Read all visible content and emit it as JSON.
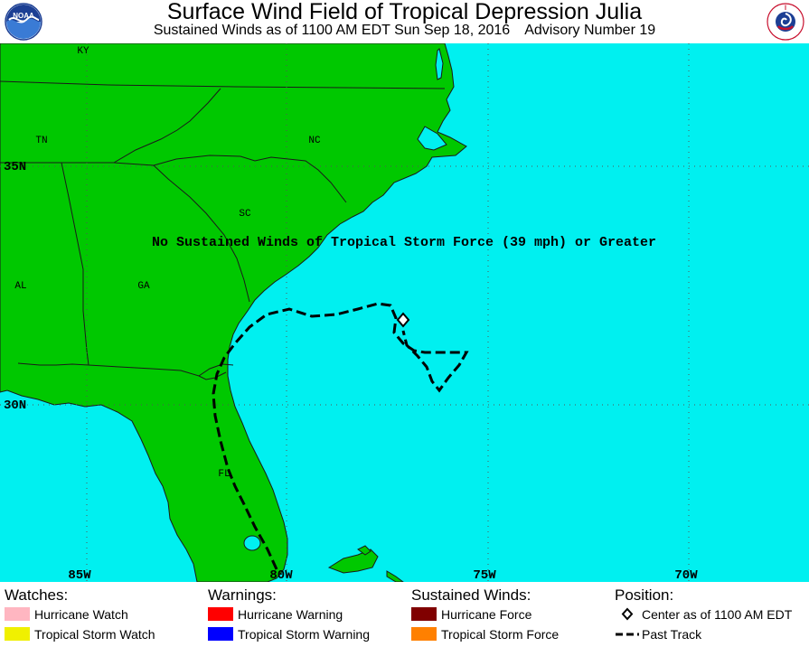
{
  "header": {
    "title": "Surface Wind Field of Tropical Depression Julia",
    "subtitle_left": "Sustained Winds as of 1100 AM EDT Sun Sep 18, 2016",
    "subtitle_right": "Advisory Number 19",
    "logo_left": "NOAA",
    "logo_right": "NATIONAL WEATHER SERVICE"
  },
  "map": {
    "state_labels": [
      "KY",
      "TN",
      "NC",
      "SC",
      "AL",
      "GA",
      "FL"
    ],
    "lat_labels": [
      "35N",
      "30N"
    ],
    "lon_labels": [
      "85W",
      "80W",
      "75W",
      "70W"
    ],
    "notice": "No Sustained Winds of Tropical Storm Force (39 mph) or Greater",
    "colors": {
      "land": "#00c800",
      "ocean": "#00f0f0",
      "border": "#1a1a1a",
      "grid": "#555555"
    }
  },
  "legend": {
    "watches": {
      "heading": "Watches:",
      "items": [
        {
          "label": "Hurricane Watch",
          "color": "#ffb6c1"
        },
        {
          "label": "Tropical Storm Watch",
          "color": "#f0f000"
        }
      ]
    },
    "warnings": {
      "heading": "Warnings:",
      "items": [
        {
          "label": "Hurricane Warning",
          "color": "#ff0000"
        },
        {
          "label": "Tropical Storm Warning",
          "color": "#0000ff"
        }
      ]
    },
    "winds": {
      "heading": "Sustained Winds:",
      "items": [
        {
          "label": "Hurricane Force",
          "color": "#800000"
        },
        {
          "label": "Tropical Storm Force",
          "color": "#ff8000"
        }
      ]
    },
    "position": {
      "heading": "Position:",
      "items": [
        {
          "label": "Center as of 1100 AM EDT",
          "icon": "diamond-icon"
        },
        {
          "label": "Past Track",
          "icon": "dashed-line-icon"
        }
      ]
    }
  }
}
